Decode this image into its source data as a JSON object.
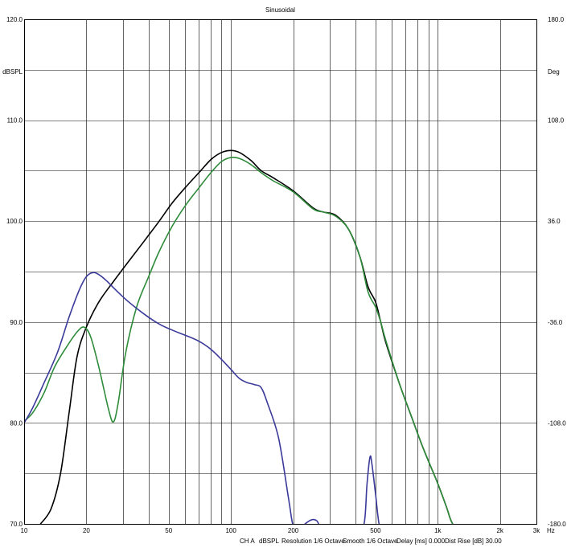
{
  "chart_data": {
    "type": "line",
    "title": "Sinusoidal",
    "x_scale": "log",
    "xlim": [
      10,
      3000
    ],
    "ylim": [
      70,
      120
    ],
    "y2lim": [
      -180,
      180
    ],
    "y_unit": "dBSPL",
    "y2_unit": "Deg",
    "x_unit": "Hz",
    "grid": true,
    "x_ticks": [
      {
        "value": 10,
        "label": "10"
      },
      {
        "value": 20,
        "label": "20"
      },
      {
        "value": 50,
        "label": "50"
      },
      {
        "value": 100,
        "label": "100"
      },
      {
        "value": 200,
        "label": "200"
      },
      {
        "value": 500,
        "label": "500"
      },
      {
        "value": 1000,
        "label": "1k"
      },
      {
        "value": 2000,
        "label": "2k"
      },
      {
        "value": 3000,
        "label": "3k"
      }
    ],
    "x_minor_grid": [
      30,
      40,
      60,
      70,
      80,
      90,
      300,
      400,
      600,
      700,
      800,
      900
    ],
    "y_ticks": [
      {
        "value": 120,
        "label": "120.0"
      },
      {
        "value": 110,
        "label": "110.0"
      },
      {
        "value": 100,
        "label": "100.0"
      },
      {
        "value": 90,
        "label": "90.0"
      },
      {
        "value": 80,
        "label": "80.0"
      },
      {
        "value": 70,
        "label": "70.0"
      }
    ],
    "y_minor_grid": [
      115,
      105,
      95,
      85,
      75
    ],
    "y2_ticks": [
      {
        "value": 180,
        "label": "180.0"
      },
      {
        "value": 108,
        "label": "108.0"
      },
      {
        "value": 36,
        "label": "36.0"
      },
      {
        "value": -36,
        "label": "-36.0"
      },
      {
        "value": -108,
        "label": "-108.0"
      },
      {
        "value": -180,
        "label": "-180.0"
      }
    ],
    "footer": {
      "channel": "CH A",
      "unit": "dBSPL",
      "resolution": "Resolution 1/6 Octave",
      "smooth": "Smooth 1/6 Octave",
      "delay": "Delay [ms] 0.000",
      "dist_rise": "Dist Rise [dB] 30.00"
    },
    "series": [
      {
        "color": "#000000",
        "points": [
          [
            12,
            70
          ],
          [
            13.5,
            71.5
          ],
          [
            15,
            75
          ],
          [
            16.5,
            81
          ],
          [
            18,
            86.5
          ],
          [
            20,
            89.5
          ],
          [
            23,
            92
          ],
          [
            27,
            94
          ],
          [
            32,
            96
          ],
          [
            38,
            98
          ],
          [
            45,
            100
          ],
          [
            52,
            101.8
          ],
          [
            60,
            103.3
          ],
          [
            70,
            104.8
          ],
          [
            80,
            106.1
          ],
          [
            90,
            106.8
          ],
          [
            100,
            107
          ],
          [
            110,
            106.8
          ],
          [
            125,
            106
          ],
          [
            140,
            105
          ],
          [
            160,
            104.3
          ],
          [
            200,
            103
          ],
          [
            250,
            101.3
          ],
          [
            280,
            100.9
          ],
          [
            320,
            100.6
          ],
          [
            370,
            99.2
          ],
          [
            420,
            96.5
          ],
          [
            460,
            93.5
          ],
          [
            500,
            92
          ],
          [
            530,
            90
          ],
          [
            560,
            88
          ],
          [
            650,
            84
          ],
          [
            750,
            80.5
          ],
          [
            850,
            77.5
          ],
          [
            1000,
            74
          ],
          [
            1100,
            71.7
          ],
          [
            1150,
            70.5
          ],
          [
            1200,
            69.7
          ]
        ]
      },
      {
        "color": "#2e8b3a",
        "points": [
          [
            10,
            80.2
          ],
          [
            11,
            81
          ],
          [
            12.5,
            83
          ],
          [
            14,
            85.5
          ],
          [
            16,
            87.5
          ],
          [
            18,
            89
          ],
          [
            19.5,
            89.5
          ],
          [
            21,
            88.5
          ],
          [
            23,
            85.5
          ],
          [
            25.5,
            81.5
          ],
          [
            27,
            80.1
          ],
          [
            28.5,
            82
          ],
          [
            31,
            87
          ],
          [
            35,
            91.5
          ],
          [
            40,
            94.5
          ],
          [
            45,
            97
          ],
          [
            52,
            99.5
          ],
          [
            60,
            101.5
          ],
          [
            70,
            103.3
          ],
          [
            80,
            104.8
          ],
          [
            90,
            105.9
          ],
          [
            100,
            106.3
          ],
          [
            110,
            106.2
          ],
          [
            125,
            105.6
          ],
          [
            140,
            104.8
          ],
          [
            160,
            104
          ],
          [
            200,
            102.9
          ],
          [
            250,
            101.2
          ],
          [
            280,
            100.9
          ],
          [
            320,
            100.5
          ],
          [
            370,
            99.2
          ],
          [
            420,
            96.5
          ],
          [
            460,
            93
          ],
          [
            500,
            91.5
          ],
          [
            530,
            90
          ],
          [
            560,
            88.2
          ],
          [
            650,
            84
          ],
          [
            750,
            80.5
          ],
          [
            850,
            77.5
          ],
          [
            1000,
            74
          ],
          [
            1100,
            71.7
          ],
          [
            1150,
            70.5
          ],
          [
            1200,
            69.7
          ]
        ]
      },
      {
        "color": "#3a3a9a",
        "points": [
          [
            10,
            80
          ],
          [
            11,
            81.5
          ],
          [
            12.5,
            84
          ],
          [
            14.5,
            87
          ],
          [
            16.5,
            90.5
          ],
          [
            18.5,
            93.2
          ],
          [
            20,
            94.5
          ],
          [
            21.5,
            94.9
          ],
          [
            23,
            94.7
          ],
          [
            25,
            94.1
          ],
          [
            28,
            93.1
          ],
          [
            32,
            92
          ],
          [
            38,
            90.8
          ],
          [
            45,
            89.8
          ],
          [
            52,
            89.2
          ],
          [
            60,
            88.7
          ],
          [
            70,
            88.1
          ],
          [
            80,
            87.3
          ],
          [
            90,
            86.3
          ],
          [
            100,
            85.3
          ],
          [
            110,
            84.4
          ],
          [
            120,
            84
          ],
          [
            130,
            83.8
          ],
          [
            140,
            83.5
          ],
          [
            150,
            82
          ],
          [
            170,
            78.5
          ],
          [
            190,
            72.5
          ],
          [
            200,
            69.8
          ],
          [
            215,
            69.5
          ],
          [
            225,
            69.9
          ],
          [
            245,
            70.4
          ],
          [
            260,
            70.3
          ],
          [
            275,
            69.5
          ],
          [
            300,
            69.6
          ],
          [
            400,
            69.7
          ],
          [
            440,
            70
          ],
          [
            455,
            74
          ],
          [
            470,
            76.6
          ],
          [
            480,
            76
          ],
          [
            500,
            73
          ],
          [
            520,
            70
          ],
          [
            540,
            69.5
          ]
        ]
      }
    ]
  }
}
